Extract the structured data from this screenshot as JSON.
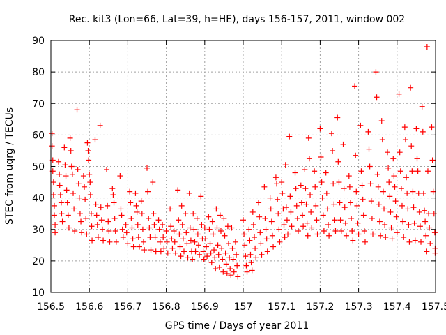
{
  "chart_data": {
    "type": "scatter",
    "title": "Rec. kit3 (Lon=66, Lat=39, h=HE), days 156-157, 2011, window 002",
    "xlabel": "GPS time / Days of year 2011",
    "ylabel": "STEC from uqrg / TECUs",
    "xlim": [
      156.5,
      157.5
    ],
    "ylim": [
      10,
      90
    ],
    "xticks": [
      156.5,
      156.6,
      156.7,
      156.8,
      156.9,
      157,
      157.1,
      157.2,
      157.3,
      157.4,
      157.5
    ],
    "xtick_labels": [
      "156.5",
      "156.6",
      "156.7",
      "156.8",
      "156.9",
      "157",
      "157.1",
      "157.2",
      "157.3",
      "157.4",
      "157.5"
    ],
    "yticks": [
      10,
      20,
      30,
      40,
      50,
      60,
      70,
      80,
      90
    ],
    "ytick_labels": [
      "10",
      "20",
      "30",
      "40",
      "50",
      "60",
      "70",
      "80",
      "90"
    ],
    "grid": true,
    "marker": "+",
    "color": "#ff0000",
    "points": [
      [
        156.503,
        60.5
      ],
      [
        156.503,
        56.5
      ],
      [
        156.505,
        52.0
      ],
      [
        156.505,
        48.5
      ],
      [
        156.507,
        45.0
      ],
      [
        156.507,
        41.0
      ],
      [
        156.509,
        37.5
      ],
      [
        156.509,
        34.5
      ],
      [
        156.511,
        31.5
      ],
      [
        156.511,
        29.0
      ],
      [
        156.52,
        51.5
      ],
      [
        156.522,
        47.5
      ],
      [
        156.523,
        44.0
      ],
      [
        156.525,
        41.0
      ],
      [
        156.527,
        38.5
      ],
      [
        156.528,
        35.0
      ],
      [
        156.53,
        32.5
      ],
      [
        156.535,
        56.0
      ],
      [
        156.537,
        50.5
      ],
      [
        156.539,
        47.0
      ],
      [
        156.541,
        42.5
      ],
      [
        156.543,
        38.5
      ],
      [
        156.545,
        34.5
      ],
      [
        156.547,
        30.5
      ],
      [
        156.55,
        59.0
      ],
      [
        156.552,
        55.0
      ],
      [
        156.554,
        50.0
      ],
      [
        156.556,
        47.5
      ],
      [
        156.558,
        41.5
      ],
      [
        156.56,
        36.5
      ],
      [
        156.562,
        29.5
      ],
      [
        156.568,
        68.0
      ],
      [
        156.57,
        49.0
      ],
      [
        156.572,
        44.5
      ],
      [
        156.574,
        40.0
      ],
      [
        156.576,
        35.0
      ],
      [
        156.578,
        32.5
      ],
      [
        156.58,
        29.0
      ],
      [
        156.585,
        47.0
      ],
      [
        156.587,
        43.5
      ],
      [
        156.589,
        39.5
      ],
      [
        156.591,
        33.5
      ],
      [
        156.593,
        28.5
      ],
      [
        156.595,
        57.5
      ],
      [
        156.597,
        55.0
      ],
      [
        156.598,
        52.0
      ],
      [
        156.6,
        47.5
      ],
      [
        156.602,
        45.0
      ],
      [
        156.603,
        41.0
      ],
      [
        156.605,
        35.0
      ],
      [
        156.606,
        31.0
      ],
      [
        156.607,
        26.5
      ],
      [
        156.615,
        58.5
      ],
      [
        156.617,
        38.0
      ],
      [
        156.619,
        34.5
      ],
      [
        156.621,
        31.5
      ],
      [
        156.623,
        27.5
      ],
      [
        156.628,
        63.0
      ],
      [
        156.63,
        37.0
      ],
      [
        156.632,
        33.0
      ],
      [
        156.634,
        30.0
      ],
      [
        156.636,
        26.5
      ],
      [
        156.645,
        49.0
      ],
      [
        156.647,
        37.5
      ],
      [
        156.649,
        32.5
      ],
      [
        156.651,
        29.5
      ],
      [
        156.653,
        26.0
      ],
      [
        156.66,
        43.0
      ],
      [
        156.662,
        41.0
      ],
      [
        156.664,
        38.5
      ],
      [
        156.666,
        33.5
      ],
      [
        156.668,
        29.5
      ],
      [
        156.67,
        26.0
      ],
      [
        156.68,
        47.0
      ],
      [
        156.682,
        36.5
      ],
      [
        156.684,
        34.5
      ],
      [
        156.686,
        30.0
      ],
      [
        156.688,
        27.5
      ],
      [
        156.695,
        31.5
      ],
      [
        156.697,
        29.0
      ],
      [
        156.7,
        25.5
      ],
      [
        156.705,
        42.0
      ],
      [
        156.707,
        38.5
      ],
      [
        156.709,
        33.5
      ],
      [
        156.711,
        30.5
      ],
      [
        156.713,
        27.0
      ],
      [
        156.715,
        24.5
      ],
      [
        156.72,
        41.5
      ],
      [
        156.722,
        37.5
      ],
      [
        156.724,
        35.5
      ],
      [
        156.726,
        31.5
      ],
      [
        156.728,
        27.5
      ],
      [
        156.73,
        24.5
      ],
      [
        156.735,
        39.0
      ],
      [
        156.737,
        35.0
      ],
      [
        156.739,
        30.0
      ],
      [
        156.741,
        26.0
      ],
      [
        156.743,
        23.5
      ],
      [
        156.75,
        49.5
      ],
      [
        156.752,
        42.0
      ],
      [
        156.754,
        33.5
      ],
      [
        156.756,
        30.5
      ],
      [
        156.758,
        27.5
      ],
      [
        156.76,
        23.5
      ],
      [
        156.765,
        45.0
      ],
      [
        156.767,
        35.0
      ],
      [
        156.769,
        31.5
      ],
      [
        156.771,
        27.5
      ],
      [
        156.773,
        23.0
      ],
      [
        156.78,
        33.0
      ],
      [
        156.782,
        30.0
      ],
      [
        156.784,
        26.0
      ],
      [
        156.786,
        23.0
      ],
      [
        156.79,
        31.5
      ],
      [
        156.792,
        27.5
      ],
      [
        156.794,
        24.0
      ],
      [
        156.8,
        29.5
      ],
      [
        156.802,
        26.0
      ],
      [
        156.804,
        22.5
      ],
      [
        156.81,
        36.5
      ],
      [
        156.812,
        31.0
      ],
      [
        156.814,
        27.0
      ],
      [
        156.816,
        24.0
      ],
      [
        156.82,
        29.5
      ],
      [
        156.822,
        26.0
      ],
      [
        156.824,
        22.5
      ],
      [
        156.83,
        42.5
      ],
      [
        156.832,
        33.0
      ],
      [
        156.834,
        28.5
      ],
      [
        156.836,
        24.5
      ],
      [
        156.838,
        21.5
      ],
      [
        156.84,
        37.5
      ],
      [
        156.842,
        31.5
      ],
      [
        156.844,
        27.0
      ],
      [
        156.846,
        23.0
      ],
      [
        156.85,
        35.0
      ],
      [
        156.852,
        29.0
      ],
      [
        156.854,
        25.5
      ],
      [
        156.856,
        21.0
      ],
      [
        156.86,
        41.5
      ],
      [
        156.862,
        30.5
      ],
      [
        156.864,
        26.5
      ],
      [
        156.866,
        23.0
      ],
      [
        156.868,
        20.5
      ],
      [
        156.87,
        35.0
      ],
      [
        156.872,
        30.0
      ],
      [
        156.874,
        26.0
      ],
      [
        156.876,
        23.0
      ],
      [
        156.88,
        33.5
      ],
      [
        156.882,
        28.5
      ],
      [
        156.884,
        25.0
      ],
      [
        156.886,
        22.0
      ],
      [
        156.89,
        40.5
      ],
      [
        156.892,
        31.5
      ],
      [
        156.894,
        27.0
      ],
      [
        156.896,
        23.0
      ],
      [
        156.898,
        20.5
      ],
      [
        156.9,
        30.5
      ],
      [
        156.902,
        27.0
      ],
      [
        156.904,
        24.5
      ],
      [
        156.906,
        21.5
      ],
      [
        156.91,
        34.0
      ],
      [
        156.912,
        30.0
      ],
      [
        156.914,
        25.5
      ],
      [
        156.916,
        22.5
      ],
      [
        156.918,
        19.5
      ],
      [
        156.92,
        32.5
      ],
      [
        156.922,
        28.5
      ],
      [
        156.924,
        23.5
      ],
      [
        156.926,
        21.0
      ],
      [
        156.928,
        17.5
      ],
      [
        156.93,
        36.5
      ],
      [
        156.932,
        30.5
      ],
      [
        156.934,
        25.0
      ],
      [
        156.936,
        22.0
      ],
      [
        156.938,
        18.0
      ],
      [
        156.94,
        34.5
      ],
      [
        156.942,
        29.5
      ],
      [
        156.944,
        24.0
      ],
      [
        156.946,
        20.5
      ],
      [
        156.948,
        16.5
      ],
      [
        156.95,
        33.5
      ],
      [
        156.952,
        28.0
      ],
      [
        156.954,
        22.5
      ],
      [
        156.956,
        19.0
      ],
      [
        156.958,
        16.0
      ],
      [
        156.96,
        31.0
      ],
      [
        156.962,
        25.5
      ],
      [
        156.964,
        21.0
      ],
      [
        156.966,
        17.5
      ],
      [
        156.968,
        15.5
      ],
      [
        156.97,
        30.5
      ],
      [
        156.972,
        24.0
      ],
      [
        156.974,
        20.5
      ],
      [
        156.976,
        16.5
      ],
      [
        156.98,
        26.0
      ],
      [
        156.982,
        22.0
      ],
      [
        156.984,
        18.5
      ],
      [
        156.986,
        15.0
      ],
      [
        157.0,
        33.0
      ],
      [
        157.002,
        28.5
      ],
      [
        157.004,
        25.0
      ],
      [
        157.006,
        21.5
      ],
      [
        157.008,
        18.5
      ],
      [
        157.01,
        16.5
      ],
      [
        157.015,
        30.0
      ],
      [
        157.017,
        26.5
      ],
      [
        157.019,
        22.0
      ],
      [
        157.021,
        19.5
      ],
      [
        157.023,
        17.0
      ],
      [
        157.025,
        35.5
      ],
      [
        157.027,
        31.5
      ],
      [
        157.029,
        27.5
      ],
      [
        157.031,
        24.0
      ],
      [
        157.033,
        21.0
      ],
      [
        157.04,
        38.5
      ],
      [
        157.042,
        34.0
      ],
      [
        157.044,
        29.0
      ],
      [
        157.046,
        25.5
      ],
      [
        157.048,
        22.0
      ],
      [
        157.055,
        43.5
      ],
      [
        157.057,
        33.5
      ],
      [
        157.059,
        30.0
      ],
      [
        157.061,
        27.0
      ],
      [
        157.063,
        23.0
      ],
      [
        157.07,
        40.0
      ],
      [
        157.072,
        36.5
      ],
      [
        157.074,
        32.5
      ],
      [
        157.076,
        28.0
      ],
      [
        157.078,
        24.5
      ],
      [
        157.085,
        46.5
      ],
      [
        157.087,
        44.5
      ],
      [
        157.089,
        39.5
      ],
      [
        157.091,
        35.0
      ],
      [
        157.093,
        30.0
      ],
      [
        157.095,
        26.0
      ],
      [
        157.1,
        45.0
      ],
      [
        157.102,
        41.5
      ],
      [
        157.104,
        36.5
      ],
      [
        157.106,
        31.5
      ],
      [
        157.108,
        27.5
      ],
      [
        157.11,
        50.5
      ],
      [
        157.112,
        37.0
      ],
      [
        157.114,
        33.0
      ],
      [
        157.116,
        28.5
      ],
      [
        157.12,
        59.5
      ],
      [
        157.122,
        40.5
      ],
      [
        157.124,
        35.5
      ],
      [
        157.126,
        31.0
      ],
      [
        157.135,
        48.0
      ],
      [
        157.137,
        43.0
      ],
      [
        157.139,
        37.5
      ],
      [
        157.141,
        33.5
      ],
      [
        157.143,
        29.5
      ],
      [
        157.15,
        44.0
      ],
      [
        157.152,
        38.5
      ],
      [
        157.154,
        34.5
      ],
      [
        157.156,
        31.0
      ],
      [
        157.16,
        49.0
      ],
      [
        157.162,
        43.0
      ],
      [
        157.164,
        38.0
      ],
      [
        157.166,
        32.0
      ],
      [
        157.168,
        28.0
      ],
      [
        157.17,
        59.0
      ],
      [
        157.172,
        52.5
      ],
      [
        157.174,
        41.0
      ],
      [
        157.176,
        35.5
      ],
      [
        157.178,
        30.5
      ],
      [
        157.185,
        48.5
      ],
      [
        157.187,
        43.5
      ],
      [
        157.189,
        37.5
      ],
      [
        157.191,
        33.0
      ],
      [
        157.193,
        28.5
      ],
      [
        157.2,
        62.0
      ],
      [
        157.202,
        53.0
      ],
      [
        157.204,
        45.0
      ],
      [
        157.206,
        40.0
      ],
      [
        157.208,
        34.5
      ],
      [
        157.21,
        29.5
      ],
      [
        157.215,
        48.0
      ],
      [
        157.217,
        41.5
      ],
      [
        157.219,
        36.5
      ],
      [
        157.221,
        31.5
      ],
      [
        157.223,
        28.0
      ],
      [
        157.23,
        60.5
      ],
      [
        157.232,
        55.0
      ],
      [
        157.234,
        44.5
      ],
      [
        157.236,
        38.0
      ],
      [
        157.238,
        33.0
      ],
      [
        157.24,
        29.5
      ],
      [
        157.245,
        65.5
      ],
      [
        157.247,
        51.5
      ],
      [
        157.249,
        45.0
      ],
      [
        157.251,
        38.5
      ],
      [
        157.253,
        33.0
      ],
      [
        157.255,
        29.5
      ],
      [
        157.26,
        57.0
      ],
      [
        157.262,
        43.0
      ],
      [
        157.264,
        37.0
      ],
      [
        157.266,
        32.0
      ],
      [
        157.268,
        28.0
      ],
      [
        157.275,
        47.0
      ],
      [
        157.277,
        43.5
      ],
      [
        157.279,
        38.5
      ],
      [
        157.281,
        33.5
      ],
      [
        157.283,
        29.5
      ],
      [
        157.285,
        26.5
      ],
      [
        157.29,
        75.5
      ],
      [
        157.292,
        53.5
      ],
      [
        157.294,
        42.0
      ],
      [
        157.296,
        37.5
      ],
      [
        157.298,
        32.0
      ],
      [
        157.3,
        28.5
      ],
      [
        157.305,
        63.0
      ],
      [
        157.307,
        48.5
      ],
      [
        157.309,
        44.0
      ],
      [
        157.311,
        39.5
      ],
      [
        157.313,
        34.5
      ],
      [
        157.315,
        29.5
      ],
      [
        157.317,
        26.0
      ],
      [
        157.325,
        61.0
      ],
      [
        157.327,
        55.5
      ],
      [
        157.329,
        50.0
      ],
      [
        157.331,
        44.5
      ],
      [
        157.333,
        39.0
      ],
      [
        157.335,
        33.5
      ],
      [
        157.337,
        28.5
      ],
      [
        157.345,
        80.0
      ],
      [
        157.347,
        72.0
      ],
      [
        157.349,
        47.5
      ],
      [
        157.351,
        43.5
      ],
      [
        157.353,
        38.0
      ],
      [
        157.355,
        32.5
      ],
      [
        157.357,
        28.0
      ],
      [
        157.36,
        64.5
      ],
      [
        157.362,
        58.5
      ],
      [
        157.364,
        42.0
      ],
      [
        157.366,
        36.5
      ],
      [
        157.368,
        31.5
      ],
      [
        157.37,
        27.5
      ],
      [
        157.375,
        54.5
      ],
      [
        157.377,
        49.5
      ],
      [
        157.379,
        45.0
      ],
      [
        157.381,
        40.5
      ],
      [
        157.383,
        35.5
      ],
      [
        157.385,
        30.5
      ],
      [
        157.387,
        27.0
      ],
      [
        157.39,
        52.5
      ],
      [
        157.392,
        47.0
      ],
      [
        157.394,
        43.5
      ],
      [
        157.396,
        39.0
      ],
      [
        157.398,
        34.0
      ],
      [
        157.4,
        29.0
      ],
      [
        157.405,
        73.0
      ],
      [
        157.407,
        54.5
      ],
      [
        157.409,
        48.5
      ],
      [
        157.411,
        43.0
      ],
      [
        157.413,
        37.5
      ],
      [
        157.415,
        32.5
      ],
      [
        157.417,
        27.5
      ],
      [
        157.42,
        62.5
      ],
      [
        157.422,
        58.5
      ],
      [
        157.424,
        46.5
      ],
      [
        157.426,
        41.5
      ],
      [
        157.428,
        36.5
      ],
      [
        157.43,
        31.5
      ],
      [
        157.432,
        26.0
      ],
      [
        157.435,
        75.0
      ],
      [
        157.437,
        56.5
      ],
      [
        157.439,
        48.5
      ],
      [
        157.441,
        42.0
      ],
      [
        157.443,
        37.0
      ],
      [
        157.445,
        32.0
      ],
      [
        157.447,
        26.5
      ],
      [
        157.45,
        62.0
      ],
      [
        157.452,
        52.5
      ],
      [
        157.454,
        48.5
      ],
      [
        157.456,
        41.5
      ],
      [
        157.458,
        35.5
      ],
      [
        157.46,
        31.0
      ],
      [
        157.462,
        26.0
      ],
      [
        157.465,
        69.0
      ],
      [
        157.467,
        61.0
      ],
      [
        157.469,
        41.5
      ],
      [
        157.471,
        36.0
      ],
      [
        157.473,
        32.5
      ],
      [
        157.475,
        28.0
      ],
      [
        157.477,
        23.0
      ],
      [
        157.478,
        88.0
      ],
      [
        157.48,
        48.5
      ],
      [
        157.482,
        35.0
      ],
      [
        157.484,
        30.5
      ],
      [
        157.486,
        25.5
      ],
      [
        157.49,
        62.5
      ],
      [
        157.492,
        52.0
      ],
      [
        157.494,
        42.0
      ],
      [
        157.496,
        35.0
      ],
      [
        157.498,
        29.0
      ],
      [
        157.499,
        24.0
      ],
      [
        157.499,
        22.5
      ]
    ]
  }
}
